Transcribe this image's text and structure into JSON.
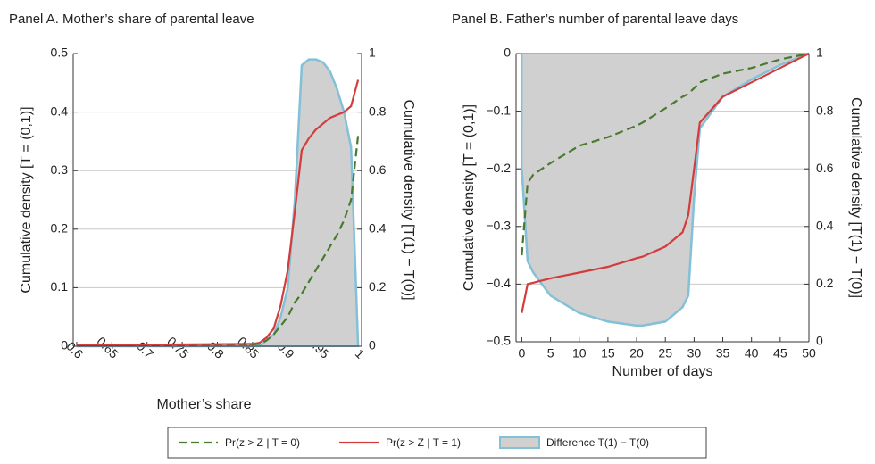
{
  "chart_data": [
    {
      "type": "line",
      "title": "Panel A. Mother’s share of parental leave",
      "xlabel": "Mother’s share",
      "ylabel": "Cumulative density [T = (0,1)]",
      "y2label": "Cumulative density [T(1) − T(0)]",
      "x": [
        0.6,
        0.85,
        0.86,
        0.87,
        0.88,
        0.89,
        0.9,
        0.91,
        0.92,
        0.93,
        0.94,
        0.95,
        0.96,
        0.97,
        0.98,
        0.99,
        1
      ],
      "xlim": [
        0.595,
        1.005
      ],
      "xticks": [
        0.6,
        0.65,
        0.7,
        0.75,
        0.8,
        0.85,
        0.9,
        0.95,
        1
      ],
      "ylim": [
        0,
        0.5
      ],
      "yticks": [
        0,
        0.1,
        0.2,
        0.3,
        0.4,
        0.5
      ],
      "y2lim": [
        0,
        1
      ],
      "y2ticks": [
        0,
        0.2,
        0.4,
        0.6,
        0.8,
        1
      ],
      "grid": true,
      "xtick_rotation": 45,
      "series": [
        {
          "name": "Difference T(1) − T(0)",
          "style": "area",
          "axis": "y",
          "color": "#d0d0d0",
          "edge_color": "#84c0d8",
          "values": [
            0,
            0,
            0,
            0.01,
            0.02,
            0.05,
            0.1,
            0.25,
            0.48,
            0.49,
            0.49,
            0.485,
            0.47,
            0.44,
            0.4,
            0.34,
            0
          ]
        },
        {
          "name": "Pr(z > Z | T = 0)",
          "style": "dashed",
          "axis": "y2",
          "color": "#4a7a2e",
          "values": [
            0.004,
            0.006,
            0.008,
            0.02,
            0.04,
            0.07,
            0.1,
            0.15,
            0.18,
            0.22,
            0.26,
            0.3,
            0.34,
            0.38,
            0.43,
            0.5,
            0.72
          ]
        },
        {
          "name": "Pr(z > Z | T = 1)",
          "style": "solid",
          "axis": "y2",
          "color": "#d43c3c",
          "values": [
            0.004,
            0.008,
            0.012,
            0.03,
            0.06,
            0.14,
            0.26,
            0.46,
            0.67,
            0.71,
            0.74,
            0.76,
            0.78,
            0.79,
            0.8,
            0.82,
            0.91
          ]
        }
      ]
    },
    {
      "type": "line",
      "title": "Panel B. Father’s number of parental leave days",
      "xlabel": "Number of days",
      "ylabel": "Cumulative density [T = (0,1)]",
      "y2label": "Cumulative density [T(1) − T(0)]",
      "x": [
        0,
        1,
        2,
        5,
        10,
        15,
        20,
        21,
        25,
        28,
        29,
        30,
        31,
        35,
        40,
        45,
        50
      ],
      "xlim": [
        -1,
        50
      ],
      "xticks": [
        0,
        5,
        10,
        15,
        20,
        25,
        30,
        35,
        40,
        45,
        50
      ],
      "ylim": [
        -0.5,
        0
      ],
      "yticks": [
        0,
        {
          "value": -0.1,
          "label": "−0.1"
        },
        {
          "value": -0.2,
          "label": "−0.2"
        },
        {
          "value": -0.3,
          "label": "−0.3"
        },
        {
          "value": -0.4,
          "label": "−0.4"
        },
        {
          "value": -0.5,
          "label": "−0.5"
        }
      ],
      "y2lim": [
        0,
        1
      ],
      "y2ticks": [
        0,
        0.2,
        0.4,
        0.6,
        0.8,
        1
      ],
      "grid": true,
      "xtick_rotation": 0,
      "series": [
        {
          "style": "area",
          "axis": "y",
          "color": "#d0d0d0",
          "edge_color": "#84c0d8",
          "values": [
            -0.2,
            -0.36,
            -0.38,
            -0.42,
            -0.45,
            -0.465,
            -0.472,
            -0.472,
            -0.465,
            -0.44,
            -0.42,
            -0.25,
            -0.13,
            -0.075,
            -0.045,
            -0.02,
            0
          ]
        },
        {
          "style": "dashed",
          "axis": "y2",
          "color": "#4a7a2e",
          "values": [
            0.3,
            0.55,
            0.58,
            0.62,
            0.68,
            0.71,
            0.75,
            0.76,
            0.81,
            0.85,
            0.86,
            0.88,
            0.9,
            0.93,
            0.95,
            0.98,
            1
          ]
        },
        {
          "style": "solid",
          "axis": "y2",
          "color": "#d43c3c",
          "values": [
            0.1,
            0.2,
            0.205,
            0.22,
            0.24,
            0.26,
            0.29,
            0.295,
            0.33,
            0.38,
            0.44,
            0.6,
            0.76,
            0.85,
            0.9,
            0.95,
            1
          ]
        }
      ]
    }
  ]
}
